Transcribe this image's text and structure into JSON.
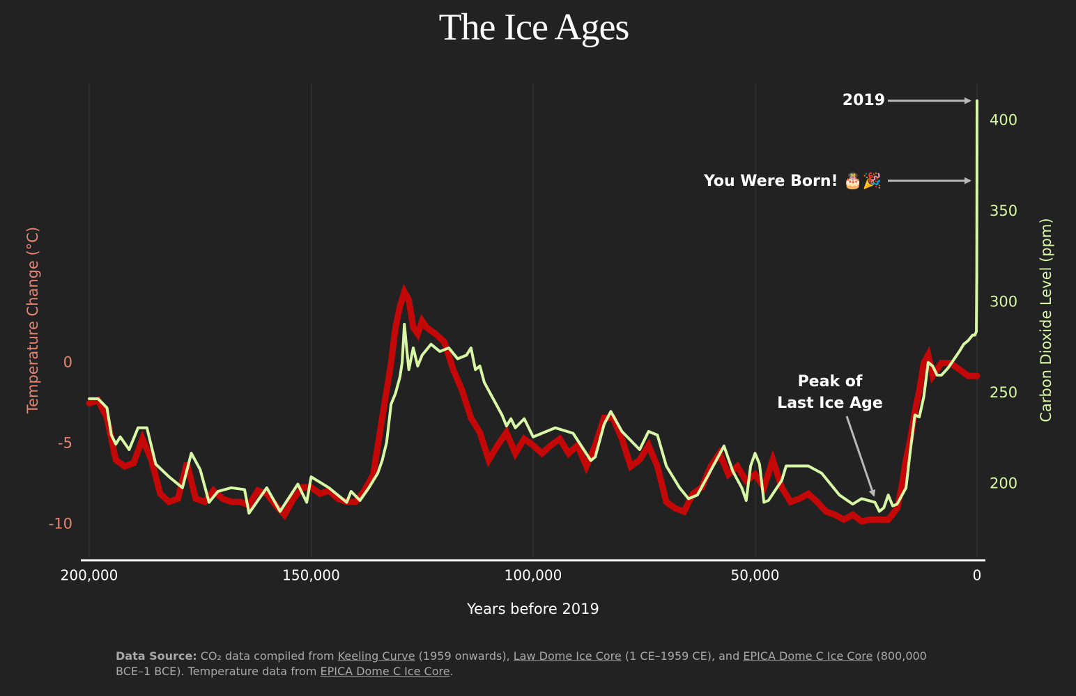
{
  "chart_data": {
    "type": "line",
    "title": "The Ice Ages",
    "xlabel": "Years before 2019",
    "ylabel": "Temperature Change (°C)",
    "y2label": "Carbon Dioxide Level (ppm)",
    "xlim": [
      200000,
      0
    ],
    "xticks": [
      {
        "value": 200000,
        "label": "200,000"
      },
      {
        "value": 150000,
        "label": "150,000"
      },
      {
        "value": 100000,
        "label": "100,000"
      },
      {
        "value": 50000,
        "label": "50,000"
      },
      0
    ],
    "ylim": [
      -12,
      17.3
    ],
    "yticks": [
      0,
      -5,
      -10
    ],
    "y2lim": [
      160,
      420.5
    ],
    "y2ticks": [
      400,
      350,
      300,
      250,
      200
    ],
    "xgrid": true,
    "ytick_color": "#e58572",
    "y2tick_color": "#d8f7a6",
    "series": [
      {
        "name": "Temperature Change",
        "color": "#c40808",
        "axis": "y",
        "x": [
          200000,
          198000,
          196000,
          194000,
          192000,
          190000,
          188000,
          186000,
          184000,
          182000,
          180000,
          178000,
          176000,
          174000,
          172000,
          170000,
          168000,
          166000,
          164000,
          162000,
          160000,
          158000,
          156000,
          154000,
          152000,
          150000,
          148000,
          146000,
          144000,
          142000,
          140000,
          138000,
          136000,
          134000,
          132000,
          131000,
          130000,
          129000,
          128000,
          127000,
          126000,
          125000,
          124000,
          122000,
          120000,
          118000,
          116000,
          114000,
          112000,
          110000,
          108000,
          106000,
          104000,
          102000,
          100000,
          98000,
          96000,
          94000,
          92000,
          90000,
          88000,
          86000,
          84000,
          82000,
          80000,
          78000,
          76000,
          74000,
          72000,
          70000,
          68000,
          66000,
          64000,
          62000,
          60000,
          58000,
          56000,
          54000,
          52000,
          50000,
          48000,
          46000,
          44000,
          42000,
          40000,
          38000,
          36000,
          34000,
          32000,
          30000,
          28000,
          26000,
          24000,
          22000,
          20000,
          18000,
          17000,
          16000,
          15000,
          14000,
          13000,
          12000,
          11000,
          10000,
          9000,
          8000,
          6000,
          4000,
          2000,
          0
        ],
        "values": [
          -2.5,
          -2.3,
          -3.4,
          -6,
          -6.4,
          -6.2,
          -4.7,
          -6,
          -8.1,
          -8.6,
          -8.4,
          -6.2,
          -8.4,
          -8.6,
          -7.9,
          -8.4,
          -8.6,
          -8.6,
          -8.8,
          -7.9,
          -8.1,
          -8.8,
          -9.4,
          -8.4,
          -7.7,
          -7.7,
          -8.1,
          -7.9,
          -8.4,
          -8.6,
          -8.6,
          -7.9,
          -6.9,
          -3.4,
          0,
          2.2,
          3.5,
          4.4,
          3.9,
          2.2,
          1.8,
          2.6,
          2.2,
          1.8,
          1.3,
          -0.4,
          -1.7,
          -3.4,
          -4.3,
          -6,
          -5.1,
          -4.3,
          -5.6,
          -4.7,
          -5.1,
          -5.6,
          -5.1,
          -4.7,
          -5.6,
          -5.1,
          -6.4,
          -5.1,
          -3.4,
          -3.4,
          -4.7,
          -6.4,
          -6,
          -5.1,
          -6.4,
          -8.6,
          -9,
          -9.2,
          -8.1,
          -7.7,
          -6.4,
          -5.6,
          -6.9,
          -6.4,
          -7.3,
          -6.9,
          -7.7,
          -6,
          -7.7,
          -8.6,
          -8.4,
          -8.1,
          -8.6,
          -9.2,
          -9.4,
          -9.7,
          -9.4,
          -9.8,
          -9.7,
          -9.7,
          -9.7,
          -9,
          -7.7,
          -6,
          -4.7,
          -3,
          -1.7,
          0,
          0.5,
          -0.8,
          -0.4,
          0,
          0,
          -0.4,
          -0.8,
          -0.8
        ]
      },
      {
        "name": "Carbon Dioxide Level",
        "color": "#d8f7a6",
        "axis": "y2",
        "x": [
          200000,
          198000,
          196000,
          195000,
          194000,
          193000,
          191000,
          189000,
          187000,
          185000,
          182000,
          179000,
          177000,
          175000,
          173000,
          171000,
          168000,
          165000,
          164000,
          162000,
          160000,
          157000,
          153000,
          151000,
          150000,
          146000,
          142000,
          141000,
          139000,
          137000,
          135000,
          134000,
          133000,
          132000,
          131000,
          130000,
          129500,
          129000,
          128500,
          128000,
          127000,
          126000,
          125000,
          123000,
          121000,
          119000,
          117000,
          115000,
          114000,
          113000,
          112000,
          111000,
          107000,
          106000,
          105000,
          104000,
          102000,
          100000,
          95000,
          91000,
          87000,
          86000,
          84000,
          82500,
          80000,
          76000,
          74000,
          72000,
          70000,
          67000,
          65000,
          63000,
          57000,
          55000,
          53000,
          52000,
          51000,
          50000,
          49000,
          48000,
          47000,
          44000,
          43000,
          38000,
          35000,
          31000,
          28000,
          26000,
          23000,
          22000,
          21000,
          20000,
          19000,
          18000,
          16000,
          15000,
          14000,
          13000,
          12000,
          11000,
          10000,
          9000,
          8000,
          6500,
          4000,
          3000,
          2000,
          1000,
          500,
          150,
          61,
          20,
          0
        ],
        "values": [
          247,
          247,
          242,
          227,
          222,
          226,
          219,
          231,
          231,
          211,
          204,
          198,
          217,
          208,
          190,
          196,
          198,
          197,
          184,
          191,
          198,
          185,
          200,
          190,
          204,
          198,
          190,
          196,
          191,
          198,
          206,
          213,
          223,
          244,
          250,
          259,
          267,
          288,
          275,
          263,
          275,
          265,
          271,
          277,
          273,
          275,
          269,
          271,
          275,
          263,
          265,
          256,
          238,
          232,
          236,
          231,
          236,
          226,
          231,
          228,
          213,
          215,
          233,
          240,
          229,
          219,
          229,
          227,
          210,
          198,
          192,
          194,
          221,
          207,
          198,
          191,
          210,
          217,
          211,
          190,
          191,
          202,
          210,
          210,
          206,
          194,
          189,
          192,
          190,
          185,
          187,
          194,
          188,
          189,
          198,
          219,
          238,
          237,
          248,
          267,
          265,
          260,
          260,
          264,
          273,
          277,
          279,
          282,
          282,
          284,
          315,
          367,
          411
        ]
      }
    ],
    "annotations": [
      {
        "text": "2019"
      },
      {
        "text": "You Were Born! 🎂🎉"
      },
      {
        "lines": [
          "Peak of",
          "Last Ice Age"
        ]
      }
    ],
    "source": [
      {
        "text": "Data Source:",
        "bold": true
      },
      {
        "text": " CO₂ data compiled from "
      },
      {
        "text": "Keeling Curve",
        "link": true
      },
      {
        "text": " (1959 onwards), "
      },
      {
        "text": "Law Dome Ice Core",
        "link": true
      },
      {
        "text": " (1 CE–1959 CE), and "
      },
      {
        "text": "EPICA Dome C Ice Core",
        "link": true
      },
      {
        "text": " (800,000 BCE–1 BCE). Temperature data from "
      },
      {
        "text": "EPICA Dome C Ice Core",
        "link": true
      },
      {
        "text": "."
      }
    ]
  }
}
